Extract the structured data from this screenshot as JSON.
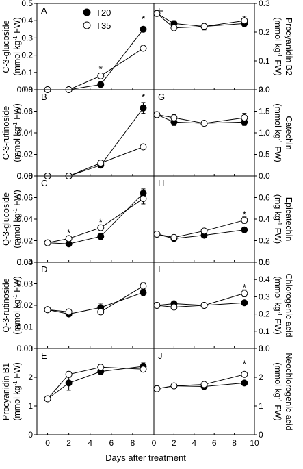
{
  "xlabel": "Days after treatment",
  "legend": {
    "entries": [
      {
        "label": "T20",
        "fill": "#000000"
      },
      {
        "label": "T35",
        "fill": "#ffffff"
      }
    ]
  },
  "chart_data": [
    {
      "type": "line",
      "panel": "A",
      "side": "left",
      "ylabel_lines": [
        "C-3-glucoside",
        "(mmol kg-1 FW)"
      ],
      "ylim": [
        0,
        0.5
      ],
      "yticks": [
        0,
        0.1,
        0.2,
        0.3,
        0.4,
        0.5
      ],
      "ytick_labels": [
        "0.0",
        "0.1",
        "0.2",
        "0.3",
        "0.4",
        "0.5"
      ],
      "xlim": [
        -1,
        10
      ],
      "xticks": [
        0,
        2,
        4,
        6,
        8
      ],
      "series": [
        {
          "name": "T20",
          "x": [
            0,
            2,
            5,
            9
          ],
          "y": [
            0.0,
            0.0,
            0.03,
            0.35
          ],
          "err": [
            0,
            0,
            0,
            0.015
          ]
        },
        {
          "name": "T35",
          "x": [
            0,
            2,
            5,
            9
          ],
          "y": [
            0.0,
            0.0,
            0.08,
            0.24
          ],
          "err": [
            0,
            0,
            0,
            0
          ]
        }
      ],
      "significance": [
        {
          "x": 5,
          "label": "*",
          "y": 0.125
        },
        {
          "x": 9,
          "label": "*",
          "y": 0.415
        }
      ]
    },
    {
      "type": "line",
      "panel": "B",
      "side": "left",
      "ylabel_lines": [
        "C-3-rutinoside",
        "(mmol kg-1 FW)"
      ],
      "ylim": [
        0,
        0.08
      ],
      "yticks": [
        0,
        0.02,
        0.04,
        0.06,
        0.08
      ],
      "ytick_labels": [
        "0.00",
        "0.02",
        "0.04",
        "0.06",
        "0.08"
      ],
      "xlim": [
        -1,
        10
      ],
      "xticks": [
        0,
        2,
        4,
        6,
        8
      ],
      "series": [
        {
          "name": "T20",
          "x": [
            0,
            2,
            5,
            9
          ],
          "y": [
            0,
            0,
            0.01,
            0.063
          ],
          "err": [
            0,
            0,
            0,
            0.005
          ]
        },
        {
          "name": "T35",
          "x": [
            0,
            2,
            5,
            9
          ],
          "y": [
            0,
            0,
            0.012,
            0.027
          ],
          "err": [
            0,
            0,
            0,
            0
          ]
        }
      ],
      "significance": [
        {
          "x": 9,
          "label": "*",
          "y": 0.074
        }
      ]
    },
    {
      "type": "line",
      "panel": "C",
      "side": "left",
      "ylabel_lines": [
        "Q-3-glucoside",
        "(mmol kg-1 FW)"
      ],
      "ylim": [
        0,
        0.08
      ],
      "yticks": [
        0,
        0.02,
        0.04,
        0.06,
        0.08
      ],
      "ytick_labels": [
        "0.00",
        "0.02",
        "0.04",
        "0.06",
        "0.08"
      ],
      "xlim": [
        -1,
        10
      ],
      "xticks": [
        0,
        2,
        4,
        6,
        8
      ],
      "series": [
        {
          "name": "T20",
          "x": [
            0,
            2,
            5,
            9
          ],
          "y": [
            0.018,
            0.017,
            0.024,
            0.064
          ],
          "err": [
            0,
            0.002,
            0.003,
            0.004
          ]
        },
        {
          "name": "T35",
          "x": [
            0,
            2,
            5,
            9
          ],
          "y": [
            0.018,
            0.022,
            0.032,
            0.059
          ],
          "err": [
            0,
            0.002,
            0.002,
            0.005
          ]
        }
      ],
      "significance": [
        {
          "x": 2,
          "label": "*",
          "y": 0.028
        },
        {
          "x": 5,
          "label": "*",
          "y": 0.038
        }
      ]
    },
    {
      "type": "line",
      "panel": "D",
      "side": "left",
      "ylabel_lines": [
        "Q-3-rutinoside",
        "(mmol kg-1 FW)"
      ],
      "ylim": [
        0,
        0.04
      ],
      "yticks": [
        0,
        0.01,
        0.02,
        0.03,
        0.04
      ],
      "ytick_labels": [
        "0.00",
        "0.01",
        "0.02",
        "0.03",
        "0.04"
      ],
      "xlim": [
        -1,
        10
      ],
      "xticks": [
        0,
        2,
        4,
        6,
        8
      ],
      "series": [
        {
          "name": "T20",
          "x": [
            0,
            2,
            5,
            9
          ],
          "y": [
            0.018,
            0.016,
            0.019,
            0.026
          ],
          "err": [
            0,
            0.001,
            0.002,
            0.0015
          ]
        },
        {
          "name": "T35",
          "x": [
            0,
            2,
            5,
            9
          ],
          "y": [
            0.018,
            0.017,
            0.017,
            0.029
          ],
          "err": [
            0,
            0.001,
            0.001,
            0.0015
          ]
        }
      ],
      "significance": []
    },
    {
      "type": "line",
      "panel": "E",
      "side": "left",
      "ylabel_lines": [
        "Procyanidin B1",
        "(mmol kg-1 FW)"
      ],
      "ylim": [
        0,
        3
      ],
      "yticks": [
        0,
        1,
        2,
        3
      ],
      "ytick_labels": [
        "0",
        "1",
        "2",
        "3"
      ],
      "xlim": [
        -1,
        10
      ],
      "xticks": [
        0,
        2,
        4,
        6,
        8
      ],
      "xtick_labels": [
        "0",
        "2",
        "4",
        "6",
        "8"
      ],
      "series": [
        {
          "name": "T20",
          "x": [
            0,
            2,
            5,
            9
          ],
          "y": [
            1.25,
            1.8,
            2.2,
            2.38
          ],
          "err": [
            0,
            0.25,
            0.1,
            0.12
          ]
        },
        {
          "name": "T35",
          "x": [
            0,
            2,
            5,
            9
          ],
          "y": [
            1.25,
            2.1,
            2.35,
            2.28
          ],
          "err": [
            0,
            0.1,
            0.1,
            0.1
          ]
        }
      ],
      "significance": []
    },
    {
      "type": "line",
      "panel": "F",
      "side": "right",
      "ylabel_lines": [
        "Procyanidin B2",
        "(mmol kg-1 FW)"
      ],
      "ylim": [
        0,
        0.3
      ],
      "yticks": [
        0,
        0.1,
        0.2,
        0.3
      ],
      "ytick_labels": [
        "0.0",
        "0.1",
        "0.2",
        "0.3"
      ],
      "xlim": [
        0,
        10
      ],
      "xticks": [
        0,
        2,
        4,
        6,
        8,
        10
      ],
      "series": [
        {
          "name": "T20",
          "x": [
            0.3,
            2,
            5,
            9
          ],
          "y": [
            0.265,
            0.23,
            0.22,
            0.23
          ],
          "err": [
            0,
            0.01,
            0.012,
            0.01
          ]
        },
        {
          "name": "T35",
          "x": [
            0.3,
            2,
            5,
            9
          ],
          "y": [
            0.265,
            0.215,
            0.22,
            0.24
          ],
          "err": [
            0,
            0.01,
            0.012,
            0.015
          ]
        }
      ],
      "significance": []
    },
    {
      "type": "line",
      "panel": "G",
      "side": "right",
      "ylabel_lines": [
        "Catechin",
        "(mmol kg-1 FW)"
      ],
      "ylim": [
        0,
        2.0
      ],
      "yticks": [
        0,
        0.5,
        1.0,
        1.5,
        2.0
      ],
      "ytick_labels": [
        "0.0",
        "0.5",
        "1.0",
        "1.5",
        "2.0"
      ],
      "xlim": [
        0,
        10
      ],
      "xticks": [
        0,
        2,
        4,
        6,
        8,
        10
      ],
      "series": [
        {
          "name": "T20",
          "x": [
            0.3,
            2,
            5,
            9
          ],
          "y": [
            1.42,
            1.25,
            1.22,
            1.25
          ],
          "err": [
            0,
            0.08,
            0.05,
            0.08
          ]
        },
        {
          "name": "T35",
          "x": [
            0.3,
            2,
            5,
            9
          ],
          "y": [
            1.42,
            1.35,
            1.22,
            1.35
          ],
          "err": [
            0,
            0.08,
            0.05,
            0.1
          ]
        }
      ],
      "significance": []
    },
    {
      "type": "line",
      "panel": "H",
      "side": "right",
      "ylabel_lines": [
        "Epicatechin",
        "(mg kg-1 FW)"
      ],
      "ylim": [
        0,
        0.8
      ],
      "yticks": [
        0,
        0.2,
        0.4,
        0.6
      ],
      "ytick_labels": [
        "0.0",
        "0.2",
        "0.4",
        "0.6"
      ],
      "xlim": [
        0,
        10
      ],
      "xticks": [
        0,
        2,
        4,
        6,
        8,
        10
      ],
      "series": [
        {
          "name": "T20",
          "x": [
            0.3,
            2,
            5,
            9
          ],
          "y": [
            0.26,
            0.22,
            0.25,
            0.3
          ],
          "err": [
            0,
            0.02,
            0.02,
            0.02
          ]
        },
        {
          "name": "T35",
          "x": [
            0.3,
            2,
            5,
            9
          ],
          "y": [
            0.26,
            0.23,
            0.29,
            0.39
          ],
          "err": [
            0,
            0.02,
            0.02,
            0.03
          ]
        }
      ],
      "significance": [
        {
          "x": 9,
          "label": "*",
          "y": 0.45
        }
      ]
    },
    {
      "type": "line",
      "panel": "I",
      "side": "right",
      "ylabel_lines": [
        "Chlorogenic acid",
        "(mmol kg-1 FW)"
      ],
      "ylim": [
        0,
        0.5
      ],
      "yticks": [
        0,
        0.1,
        0.2,
        0.3,
        0.4,
        0.5
      ],
      "ytick_labels": [
        "0.0",
        "0.1",
        "0.2",
        "0.3",
        "0.4",
        "0.5"
      ],
      "xlim": [
        0,
        10
      ],
      "xticks": [
        0,
        2,
        4,
        6,
        8,
        10
      ],
      "series": [
        {
          "name": "T20",
          "x": [
            0.3,
            2,
            5,
            9
          ],
          "y": [
            0.25,
            0.26,
            0.25,
            0.265
          ],
          "err": [
            0,
            0.01,
            0.01,
            0.01
          ]
        },
        {
          "name": "T35",
          "x": [
            0.3,
            2,
            5,
            9
          ],
          "y": [
            0.25,
            0.24,
            0.25,
            0.32
          ],
          "err": [
            0,
            0.01,
            0.01,
            0.02
          ]
        }
      ],
      "significance": [
        {
          "x": 9,
          "label": "*",
          "y": 0.36
        }
      ]
    },
    {
      "type": "line",
      "panel": "J",
      "side": "right",
      "ylabel_lines": [
        "Neochlorogenic acid",
        "(mmol kg-1 FW)"
      ],
      "ylim": [
        0,
        3
      ],
      "yticks": [
        0,
        1,
        2,
        3
      ],
      "ytick_labels": [
        "0",
        "1",
        "2",
        "3"
      ],
      "xlim": [
        0,
        10
      ],
      "xticks": [
        0,
        2,
        4,
        6,
        8,
        10
      ],
      "xtick_labels": [
        "0",
        "2",
        "4",
        "6",
        "8",
        "10"
      ],
      "series": [
        {
          "name": "T20",
          "x": [
            0.3,
            2,
            5,
            9
          ],
          "y": [
            1.6,
            1.7,
            1.68,
            1.8
          ],
          "err": [
            0,
            0.05,
            0.05,
            0.05
          ]
        },
        {
          "name": "T35",
          "x": [
            0.3,
            2,
            5,
            9
          ],
          "y": [
            1.6,
            1.7,
            1.75,
            2.1
          ],
          "err": [
            0,
            0.05,
            0.05,
            0.08
          ]
        }
      ],
      "significance": [
        {
          "x": 9,
          "label": "*",
          "y": 2.5
        }
      ]
    }
  ]
}
